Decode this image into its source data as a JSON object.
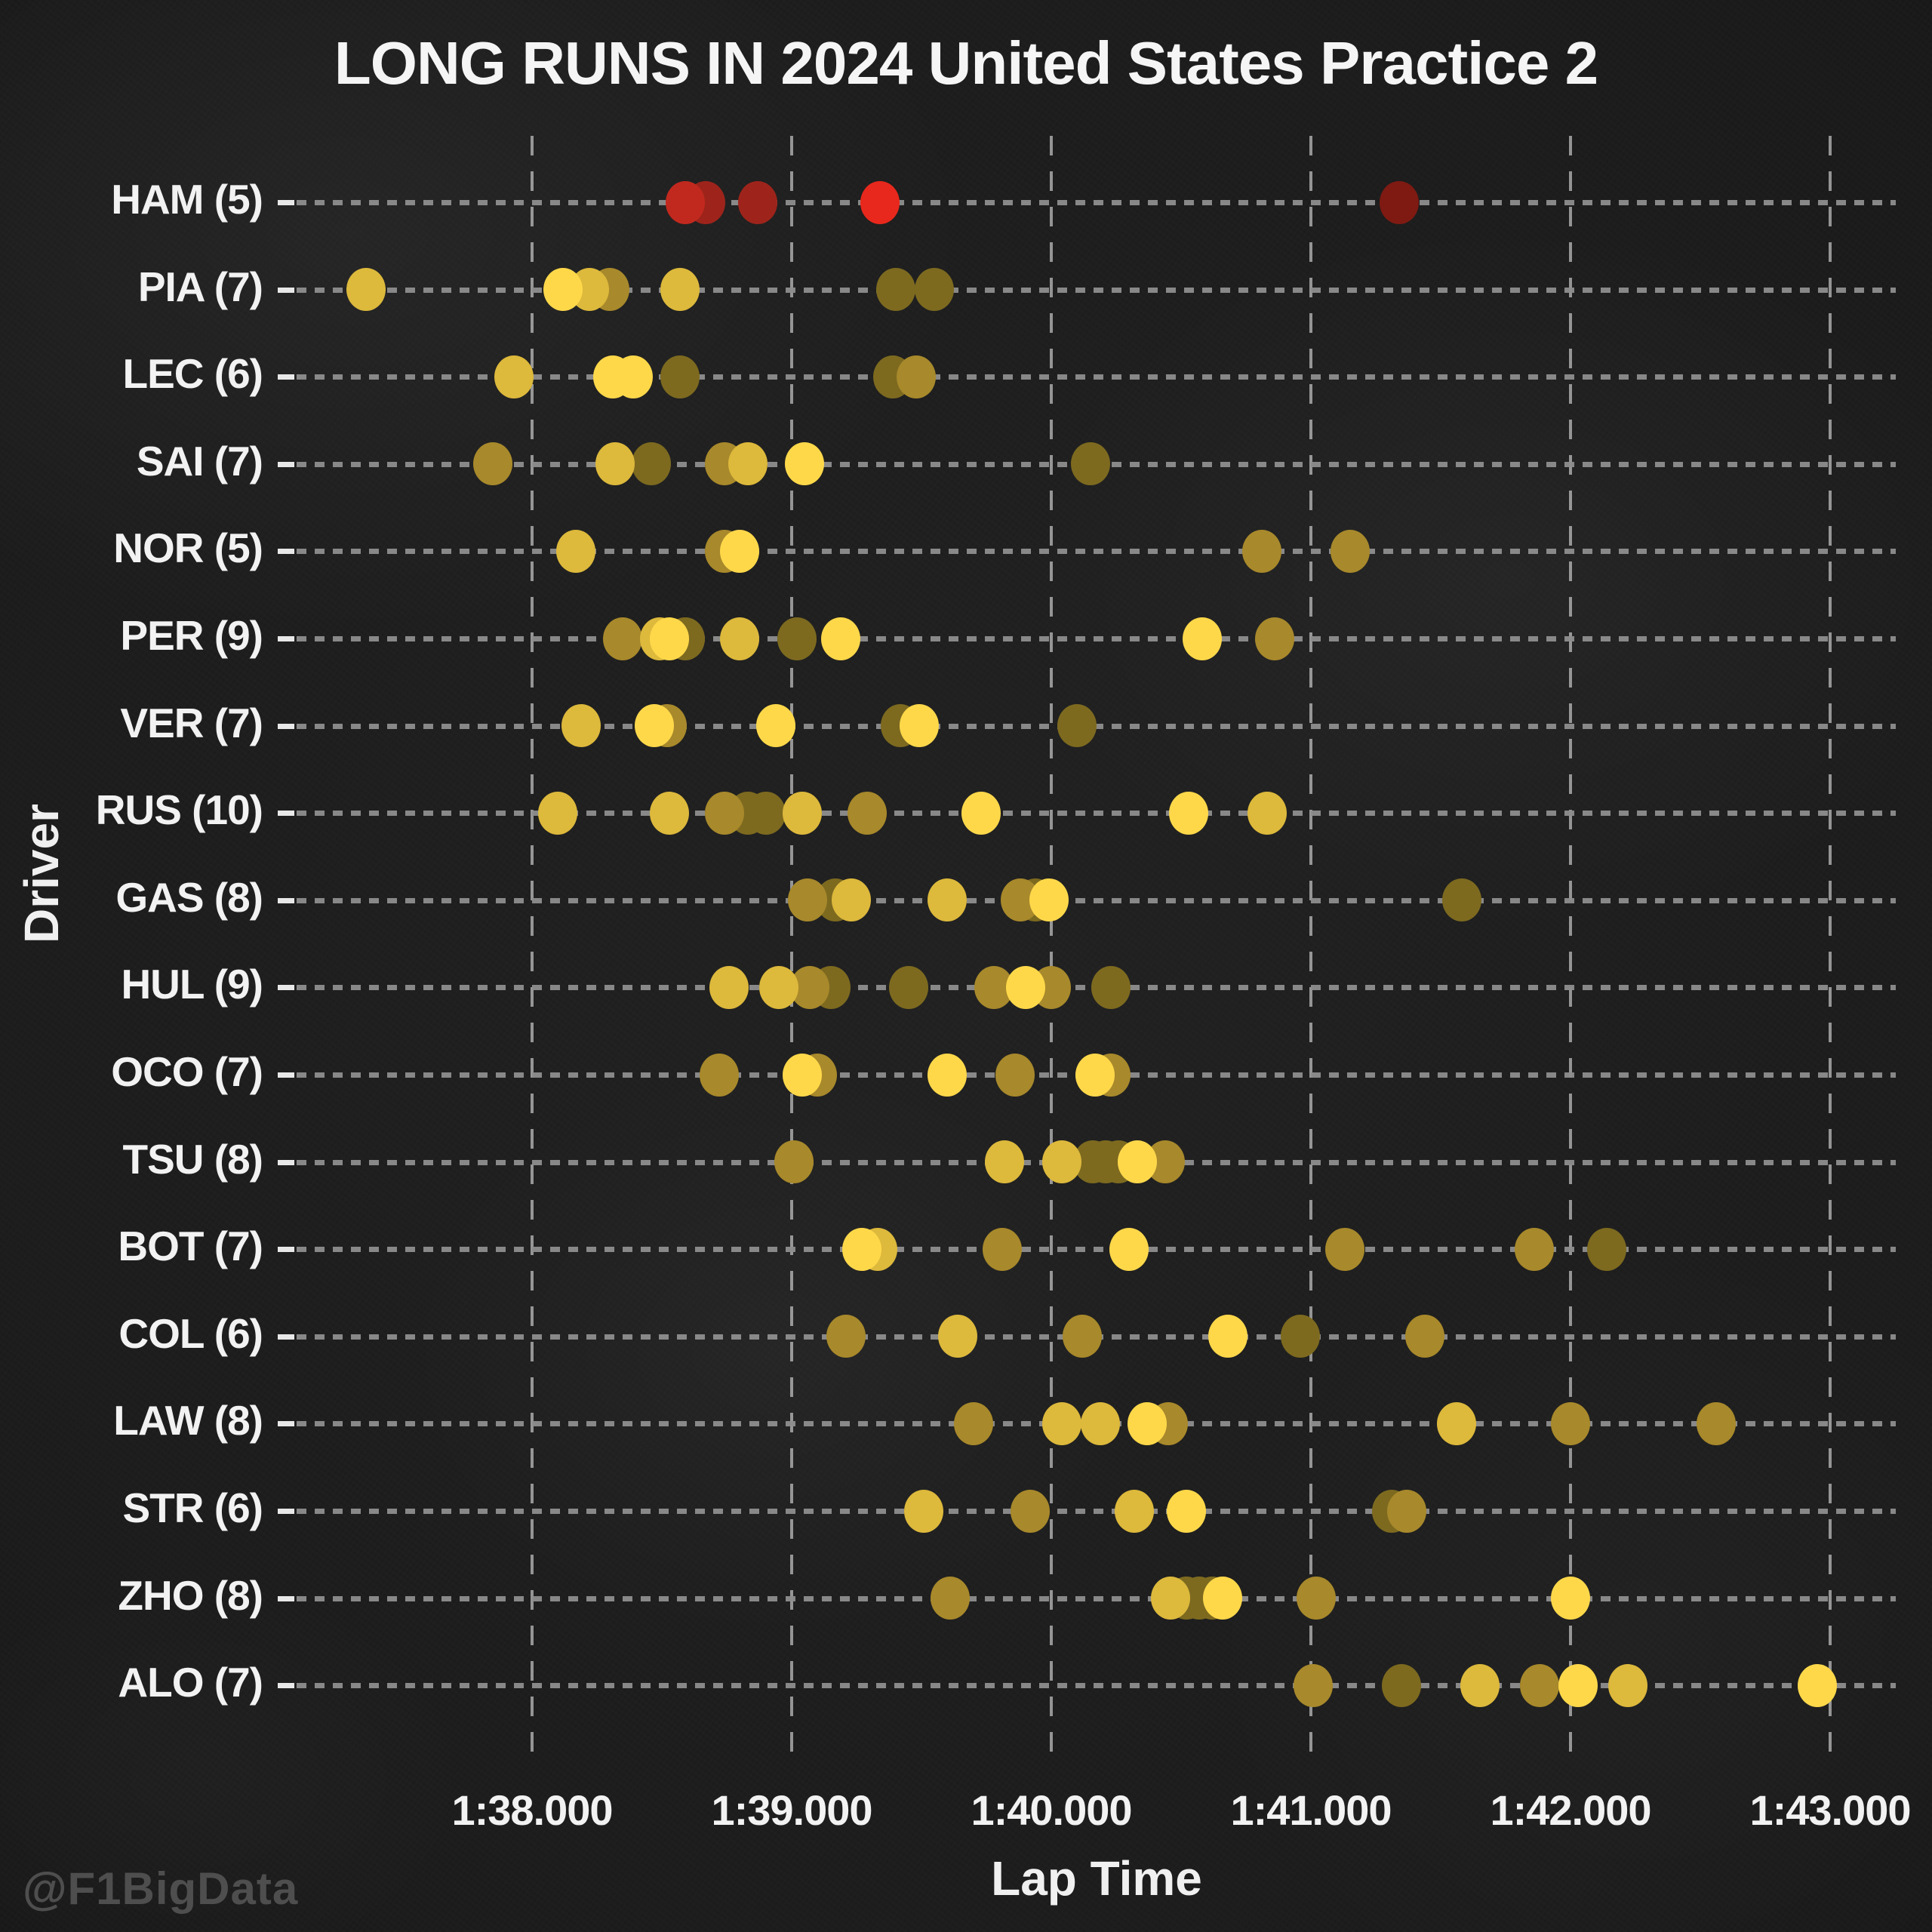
{
  "title": "LONG RUNS IN 2024 United States Practice 2",
  "watermark": "@F1BigData",
  "axes": {
    "x_label": "Lap Time",
    "y_label": "Driver",
    "x_ticks": [
      {
        "label": "1:38.000",
        "t": 98
      },
      {
        "label": "1:39.000",
        "t": 99
      },
      {
        "label": "1:40.000",
        "t": 100
      },
      {
        "label": "1:41.000",
        "t": 101
      },
      {
        "label": "1:42.000",
        "t": 102
      },
      {
        "label": "1:43.000",
        "t": 103
      }
    ]
  },
  "palette": {
    "m1": "#FFD84A",
    "m2": "#DDB93C",
    "m3": "#A8892B",
    "m4": "#7D6A1F",
    "r1": "#E8281C",
    "r2": "#C2291E",
    "r3": "#9E241B",
    "r4": "#7E1A12",
    "grid": "#8e8e8e",
    "text": "#f2f2f2"
  },
  "chart_data": {
    "type": "scatter",
    "title": "LONG RUNS IN 2024 United States Practice 2",
    "xlabel": "Lap Time",
    "ylabel": "Driver",
    "x_range_seconds": [
      97.2,
      103.3
    ],
    "x_tick_seconds": [
      98,
      99,
      100,
      101,
      102,
      103
    ],
    "grid": true,
    "legend": "none",
    "note": "dot color key: m1-m4 = medium tyre laps bright-to-faded, r1-r4 = soft/red tyre laps bright-to-faded; t = lap time in seconds past 1:00",
    "drivers": [
      {
        "code": "HAM",
        "laps": 5,
        "label": "HAM (5)",
        "runs": [
          {
            "t": 98.59,
            "c": "r2"
          },
          {
            "t": 98.67,
            "c": "r3"
          },
          {
            "t": 98.87,
            "c": "r3"
          },
          {
            "t": 99.34,
            "c": "r1"
          },
          {
            "t": 101.34,
            "c": "r4"
          }
        ]
      },
      {
        "code": "PIA",
        "laps": 7,
        "label": "PIA (7)",
        "runs": [
          {
            "t": 97.36,
            "c": "m2"
          },
          {
            "t": 98.12,
            "c": "m1"
          },
          {
            "t": 98.22,
            "c": "m2"
          },
          {
            "t": 98.3,
            "c": "m3"
          },
          {
            "t": 98.57,
            "c": "m2"
          },
          {
            "t": 99.4,
            "c": "m4"
          },
          {
            "t": 99.55,
            "c": "m4"
          }
        ]
      },
      {
        "code": "LEC",
        "laps": 6,
        "label": "LEC (6)",
        "runs": [
          {
            "t": 97.93,
            "c": "m2"
          },
          {
            "t": 98.31,
            "c": "m1"
          },
          {
            "t": 98.39,
            "c": "m1"
          },
          {
            "t": 98.57,
            "c": "m4"
          },
          {
            "t": 99.39,
            "c": "m4"
          },
          {
            "t": 99.48,
            "c": "m3"
          }
        ]
      },
      {
        "code": "SAI",
        "laps": 7,
        "label": "SAI (7)",
        "runs": [
          {
            "t": 97.85,
            "c": "m3"
          },
          {
            "t": 98.32,
            "c": "m2"
          },
          {
            "t": 98.46,
            "c": "m4"
          },
          {
            "t": 98.74,
            "c": "m3"
          },
          {
            "t": 98.83,
            "c": "m2"
          },
          {
            "t": 99.05,
            "c": "m1"
          },
          {
            "t": 100.15,
            "c": "m4"
          }
        ]
      },
      {
        "code": "NOR",
        "laps": 5,
        "label": "NOR (5)",
        "runs": [
          {
            "t": 98.17,
            "c": "m2"
          },
          {
            "t": 98.74,
            "c": "m3"
          },
          {
            "t": 98.8,
            "c": "m1"
          },
          {
            "t": 100.81,
            "c": "m3"
          },
          {
            "t": 101.15,
            "c": "m3"
          }
        ]
      },
      {
        "code": "PER",
        "laps": 9,
        "label": "PER (9)",
        "runs": [
          {
            "t": 98.35,
            "c": "m3"
          },
          {
            "t": 98.49,
            "c": "m2"
          },
          {
            "t": 98.53,
            "c": "m1"
          },
          {
            "t": 98.59,
            "c": "m4"
          },
          {
            "t": 98.8,
            "c": "m2"
          },
          {
            "t": 99.02,
            "c": "m4"
          },
          {
            "t": 99.19,
            "c": "m1"
          },
          {
            "t": 100.58,
            "c": "m1"
          },
          {
            "t": 100.86,
            "c": "m3"
          }
        ]
      },
      {
        "code": "VER",
        "laps": 7,
        "label": "VER (7)",
        "runs": [
          {
            "t": 98.19,
            "c": "m2"
          },
          {
            "t": 98.47,
            "c": "m1"
          },
          {
            "t": 98.52,
            "c": "m3"
          },
          {
            "t": 98.94,
            "c": "m1"
          },
          {
            "t": 99.42,
            "c": "m4"
          },
          {
            "t": 99.49,
            "c": "m1"
          },
          {
            "t": 100.1,
            "c": "m4"
          }
        ]
      },
      {
        "code": "RUS",
        "laps": 10,
        "label": "RUS (10)",
        "runs": [
          {
            "t": 98.1,
            "c": "m2"
          },
          {
            "t": 98.53,
            "c": "m2"
          },
          {
            "t": 98.74,
            "c": "m3"
          },
          {
            "t": 98.83,
            "c": "m4"
          },
          {
            "t": 98.9,
            "c": "m4"
          },
          {
            "t": 99.04,
            "c": "m2"
          },
          {
            "t": 99.29,
            "c": "m3"
          },
          {
            "t": 99.73,
            "c": "m1"
          },
          {
            "t": 100.53,
            "c": "m1"
          },
          {
            "t": 100.83,
            "c": "m2"
          }
        ]
      },
      {
        "code": "GAS",
        "laps": 8,
        "label": "GAS (8)",
        "runs": [
          {
            "t": 99.06,
            "c": "m3"
          },
          {
            "t": 99.17,
            "c": "m4"
          },
          {
            "t": 99.23,
            "c": "m2"
          },
          {
            "t": 99.6,
            "c": "m2"
          },
          {
            "t": 99.88,
            "c": "m3"
          },
          {
            "t": 99.94,
            "c": "m4"
          },
          {
            "t": 99.99,
            "c": "m1"
          },
          {
            "t": 101.58,
            "c": "m4"
          }
        ]
      },
      {
        "code": "HUL",
        "laps": 9,
        "label": "HUL (9)",
        "runs": [
          {
            "t": 98.76,
            "c": "m2"
          },
          {
            "t": 98.95,
            "c": "m2"
          },
          {
            "t": 99.07,
            "c": "m3"
          },
          {
            "t": 99.15,
            "c": "m4"
          },
          {
            "t": 99.45,
            "c": "m4"
          },
          {
            "t": 99.78,
            "c": "m3"
          },
          {
            "t": 99.9,
            "c": "m1"
          },
          {
            "t": 100.0,
            "c": "m3"
          },
          {
            "t": 100.23,
            "c": "m4"
          }
        ]
      },
      {
        "code": "OCO",
        "laps": 7,
        "label": "OCO (7)",
        "runs": [
          {
            "t": 98.72,
            "c": "m3"
          },
          {
            "t": 99.04,
            "c": "m1"
          },
          {
            "t": 99.1,
            "c": "m3"
          },
          {
            "t": 99.6,
            "c": "m1"
          },
          {
            "t": 99.86,
            "c": "m3"
          },
          {
            "t": 100.17,
            "c": "m1"
          },
          {
            "t": 100.23,
            "c": "m3"
          }
        ]
      },
      {
        "code": "TSU",
        "laps": 8,
        "label": "TSU (8)",
        "runs": [
          {
            "t": 99.01,
            "c": "m3"
          },
          {
            "t": 99.82,
            "c": "m2"
          },
          {
            "t": 100.04,
            "c": "m2"
          },
          {
            "t": 100.16,
            "c": "m4"
          },
          {
            "t": 100.21,
            "c": "m4"
          },
          {
            "t": 100.26,
            "c": "m4"
          },
          {
            "t": 100.33,
            "c": "m1"
          },
          {
            "t": 100.44,
            "c": "m3"
          }
        ]
      },
      {
        "code": "BOT",
        "laps": 7,
        "label": "BOT (7)",
        "runs": [
          {
            "t": 99.27,
            "c": "m1"
          },
          {
            "t": 99.33,
            "c": "m2"
          },
          {
            "t": 99.81,
            "c": "m3"
          },
          {
            "t": 100.3,
            "c": "m1"
          },
          {
            "t": 101.13,
            "c": "m3"
          },
          {
            "t": 101.86,
            "c": "m3"
          },
          {
            "t": 102.14,
            "c": "m4"
          }
        ]
      },
      {
        "code": "COL",
        "laps": 6,
        "label": "COL (6)",
        "runs": [
          {
            "t": 99.21,
            "c": "m3"
          },
          {
            "t": 99.64,
            "c": "m2"
          },
          {
            "t": 100.12,
            "c": "m3"
          },
          {
            "t": 100.68,
            "c": "m1"
          },
          {
            "t": 100.96,
            "c": "m4"
          },
          {
            "t": 101.44,
            "c": "m3"
          }
        ]
      },
      {
        "code": "LAW",
        "laps": 8,
        "label": "LAW (8)",
        "runs": [
          {
            "t": 99.7,
            "c": "m3"
          },
          {
            "t": 100.04,
            "c": "m2"
          },
          {
            "t": 100.19,
            "c": "m2"
          },
          {
            "t": 100.37,
            "c": "m1"
          },
          {
            "t": 100.45,
            "c": "m3"
          },
          {
            "t": 101.56,
            "c": "m2"
          },
          {
            "t": 102.0,
            "c": "m3"
          },
          {
            "t": 102.56,
            "c": "m3"
          }
        ]
      },
      {
        "code": "STR",
        "laps": 6,
        "label": "STR (6)",
        "runs": [
          {
            "t": 99.51,
            "c": "m2"
          },
          {
            "t": 99.92,
            "c": "m3"
          },
          {
            "t": 100.32,
            "c": "m2"
          },
          {
            "t": 100.52,
            "c": "m1"
          },
          {
            "t": 101.31,
            "c": "m4"
          },
          {
            "t": 101.37,
            "c": "m3"
          }
        ]
      },
      {
        "code": "ZHO",
        "laps": 8,
        "label": "ZHO (8)",
        "runs": [
          {
            "t": 99.61,
            "c": "m3"
          },
          {
            "t": 100.46,
            "c": "m2"
          },
          {
            "t": 100.52,
            "c": "m4"
          },
          {
            "t": 100.57,
            "c": "m4"
          },
          {
            "t": 100.62,
            "c": "m4"
          },
          {
            "t": 100.66,
            "c": "m1"
          },
          {
            "t": 101.02,
            "c": "m3"
          },
          {
            "t": 102.0,
            "c": "m1"
          }
        ]
      },
      {
        "code": "ALO",
        "laps": 7,
        "label": "ALO (7)",
        "runs": [
          {
            "t": 101.01,
            "c": "m3"
          },
          {
            "t": 101.35,
            "c": "m4"
          },
          {
            "t": 101.65,
            "c": "m2"
          },
          {
            "t": 101.88,
            "c": "m3"
          },
          {
            "t": 102.03,
            "c": "m1"
          },
          {
            "t": 102.22,
            "c": "m2"
          },
          {
            "t": 102.95,
            "c": "m1"
          }
        ]
      }
    ]
  }
}
